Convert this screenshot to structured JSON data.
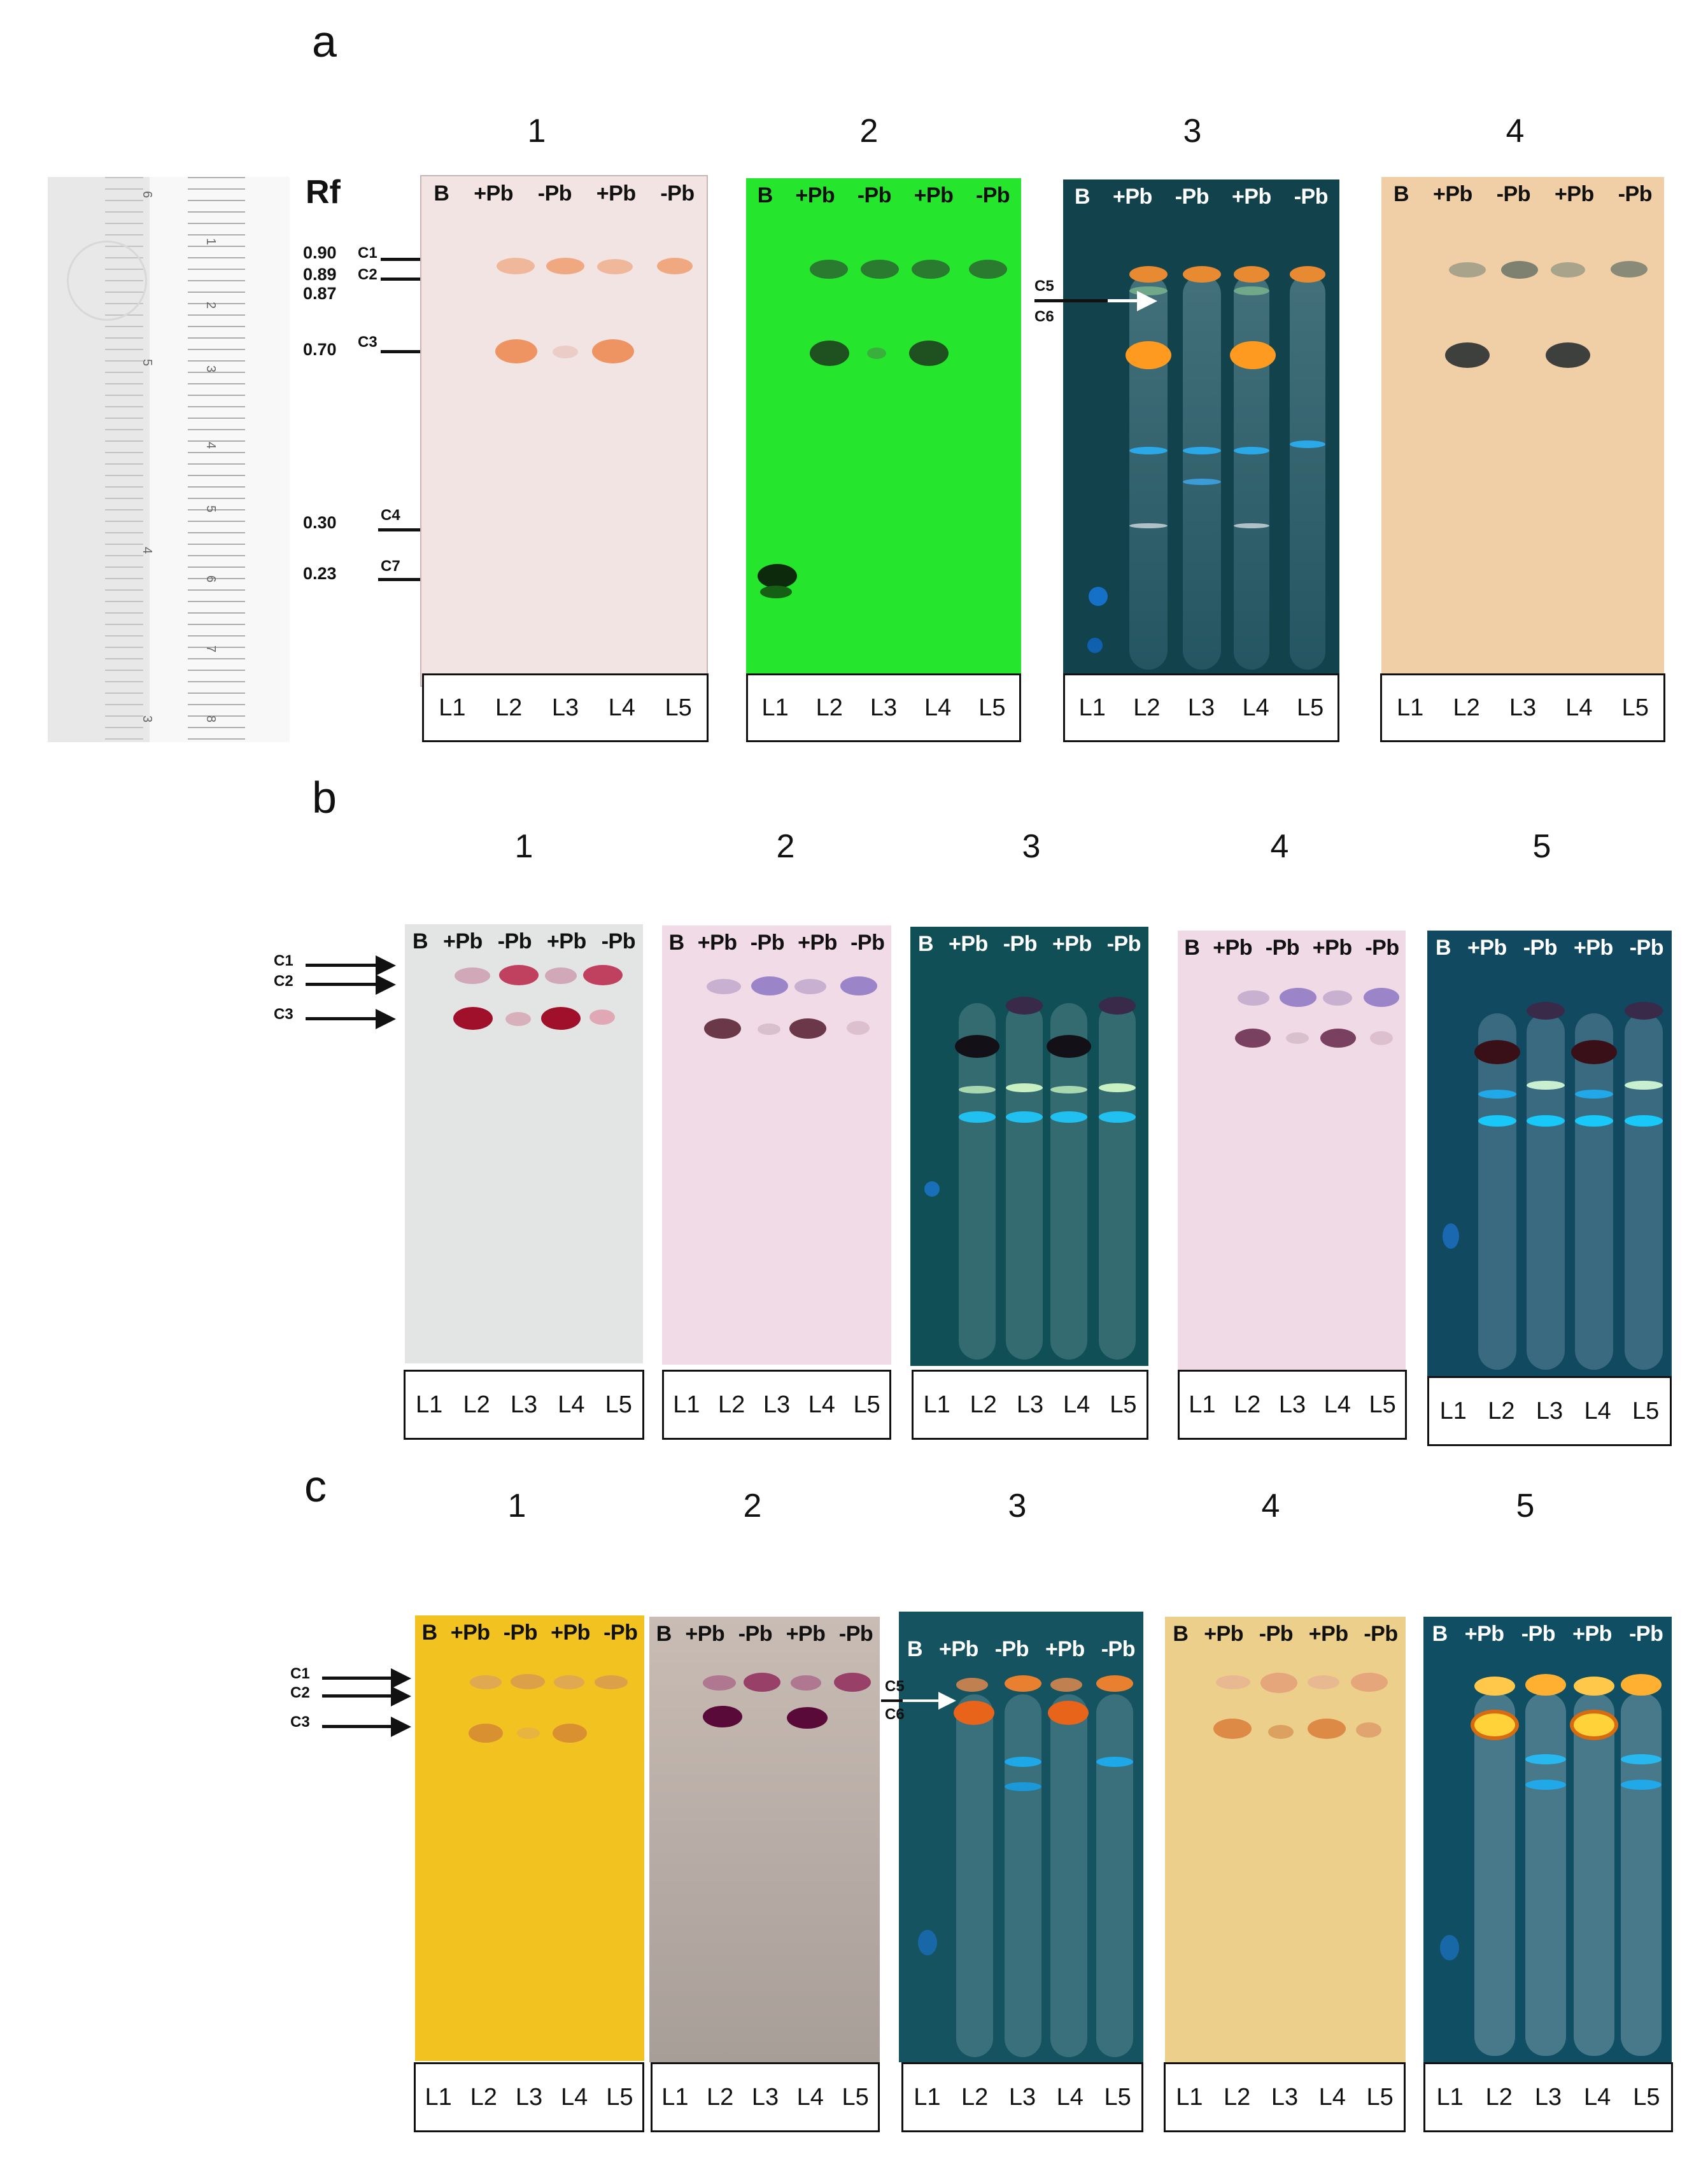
{
  "sections": [
    {
      "letter": "a",
      "panels": [
        "1",
        "2",
        "3",
        "4"
      ]
    },
    {
      "letter": "b",
      "panels": [
        "1",
        "2",
        "3",
        "4",
        "5"
      ]
    },
    {
      "letter": "c",
      "panels": [
        "1",
        "2",
        "3",
        "4",
        "5"
      ]
    }
  ],
  "lane_headers": [
    "B",
    "+Pb",
    "-Pb",
    "+Pb",
    "-Pb"
  ],
  "lane_labels": [
    "L1",
    "L2",
    "L3",
    "L4",
    "L5"
  ],
  "rf_title": "Rf",
  "rf_values": [
    "0.90",
    "0.89",
    "0.87",
    "0.70",
    "0.30",
    "0.23"
  ],
  "compounds": [
    "C1",
    "C2",
    "C3",
    "C4",
    "C7",
    "C5",
    "C6"
  ],
  "ruler_marks": [
    "6",
    "1",
    "2",
    "5",
    "3",
    "4",
    "5",
    "4",
    "6",
    "3",
    "7",
    "8"
  ],
  "colors": {
    "plate_a1": "#f2e4e2",
    "plate_a2": "#25e62c",
    "plate_a3": "#12434d",
    "plate_a4": "#f0cfa6",
    "plate_b1": "#e2e5e4",
    "plate_b2": "#f0dbe6",
    "plate_b3": "#0f4f55",
    "plate_b4": "#f0dae6",
    "plate_b5": "#114a60",
    "plate_c1": "#f2c320",
    "plate_c2": "#b0a49c",
    "plate_c3": "#14535f",
    "plate_c4": "#edcf8c",
    "plate_c5": "#104f63"
  }
}
